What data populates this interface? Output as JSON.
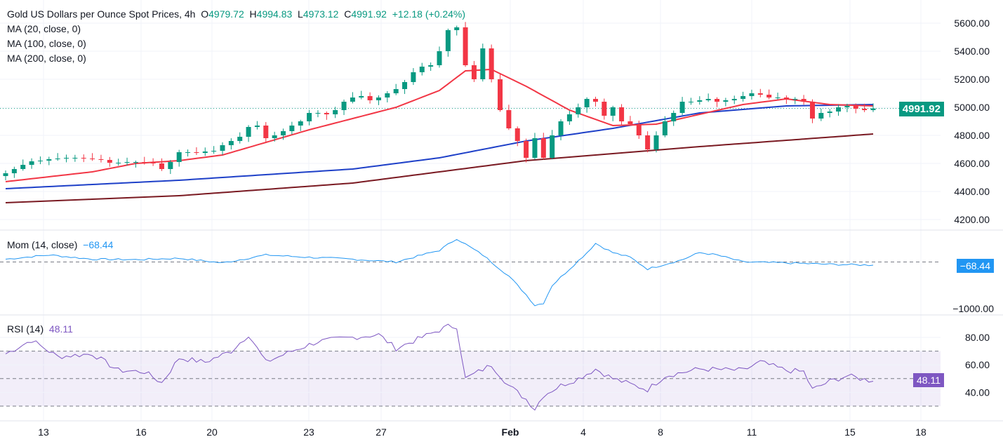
{
  "header": {
    "title": "Gold US Dollars per Ounce Spot Prices, 4h",
    "o_label": "O",
    "o": "4979.72",
    "h_label": "H",
    "h": "4994.83",
    "l_label": "L",
    "l": "4973.12",
    "c_label": "C",
    "c": "4991.92",
    "change": "+12.18 (+0.24%)"
  },
  "indicators": {
    "ma20": "MA (20, close, 0)",
    "ma100": "MA (100, close, 0)",
    "ma200": "MA (200, close, 0)",
    "mom_label": "Mom (14, close)",
    "mom_value": "−68.44",
    "rsi_label": "RSI (14)",
    "rsi_value": "48.11"
  },
  "colors": {
    "up": "#089981",
    "down": "#f23645",
    "ma20": "#f23645",
    "ma100": "#1e40c8",
    "ma200": "#7a1a22",
    "mom": "#2196f3",
    "rsi": "#7e57c2",
    "last_price": "#089981"
  },
  "chart_data": [
    {
      "type": "candlestick",
      "title": "Gold US Dollars per Ounce Spot Prices, 4h",
      "ylim": [
        4200,
        5600
      ],
      "yticks": [
        "5600.00",
        "5400.00",
        "5200.00",
        "5000.00",
        "4800.00",
        "4600.00",
        "4400.00",
        "4200.00"
      ],
      "last_price": "4991.92",
      "closes": [
        4530,
        4560,
        4590,
        4615,
        4620,
        4630,
        4635,
        4640,
        4640,
        4635,
        4630,
        4625,
        4605,
        4605,
        4610,
        4610,
        4605,
        4600,
        4560,
        4610,
        4680,
        4680,
        4675,
        4685,
        4690,
        4730,
        4760,
        4790,
        4860,
        4870,
        4780,
        4800,
        4830,
        4870,
        4900,
        4960,
        4960,
        4950,
        4980,
        5040,
        5070,
        5080,
        5050,
        5070,
        5100,
        5130,
        5180,
        5250,
        5290,
        5300,
        5400,
        5550,
        5570,
        5300,
        5200,
        5420,
        5200,
        4980,
        4850,
        4760,
        4640,
        4780,
        4640,
        4800,
        4900,
        4950,
        5000,
        5060,
        5040,
        4940,
        5000,
        4900,
        4880,
        4800,
        4700,
        4800,
        4900,
        4960,
        5040,
        5040,
        5050,
        5060,
        5040,
        5050,
        5060,
        5080,
        5100,
        5090,
        5070,
        5070,
        5060,
        5060,
        5040,
        4920,
        4960,
        4970,
        5000,
        5010,
        4990,
        4980,
        4991.92
      ],
      "series": [
        {
          "name": "MA (20, close, 0)",
          "points": [
            [
              0,
              4470
            ],
            [
              10,
              4540
            ],
            [
              15,
              4600
            ],
            [
              20,
              4620
            ],
            [
              25,
              4660
            ],
            [
              30,
              4750
            ],
            [
              35,
              4840
            ],
            [
              40,
              4920
            ],
            [
              45,
              5000
            ],
            [
              50,
              5120
            ],
            [
              53,
              5260
            ],
            [
              56,
              5270
            ],
            [
              60,
              5150
            ],
            [
              65,
              4980
            ],
            [
              70,
              4870
            ],
            [
              75,
              4880
            ],
            [
              80,
              4950
            ],
            [
              85,
              5020
            ],
            [
              90,
              5060
            ],
            [
              95,
              5020
            ],
            [
              100,
              5010
            ]
          ]
        },
        {
          "name": "MA (100, close, 0)",
          "points": [
            [
              0,
              4420
            ],
            [
              20,
              4480
            ],
            [
              40,
              4560
            ],
            [
              50,
              4640
            ],
            [
              60,
              4760
            ],
            [
              70,
              4850
            ],
            [
              80,
              4960
            ],
            [
              90,
              5010
            ],
            [
              100,
              5020
            ]
          ]
        },
        {
          "name": "MA (200, close, 0)",
          "points": [
            [
              0,
              4320
            ],
            [
              20,
              4370
            ],
            [
              40,
              4460
            ],
            [
              60,
              4620
            ],
            [
              80,
              4720
            ],
            [
              100,
              4810
            ]
          ]
        }
      ]
    },
    {
      "type": "line",
      "title": "Mom (14, close)",
      "yticks": [
        "−1000.00"
      ],
      "reference": 0,
      "points": [
        [
          0,
          60
        ],
        [
          5,
          150
        ],
        [
          10,
          60
        ],
        [
          15,
          50
        ],
        [
          20,
          80
        ],
        [
          25,
          -20
        ],
        [
          30,
          150
        ],
        [
          35,
          100
        ],
        [
          40,
          60
        ],
        [
          45,
          0
        ],
        [
          50,
          250
        ],
        [
          52,
          500
        ],
        [
          55,
          150
        ],
        [
          58,
          -300
        ],
        [
          60,
          -700
        ],
        [
          61,
          -930
        ],
        [
          62,
          -880
        ],
        [
          63,
          -500
        ],
        [
          65,
          -150
        ],
        [
          67,
          200
        ],
        [
          68,
          400
        ],
        [
          70,
          200
        ],
        [
          72,
          100
        ],
        [
          74,
          -150
        ],
        [
          76,
          -50
        ],
        [
          78,
          50
        ],
        [
          80,
          200
        ],
        [
          82,
          150
        ],
        [
          85,
          0
        ],
        [
          90,
          -20
        ],
        [
          95,
          -50
        ],
        [
          100,
          -68.44
        ]
      ]
    },
    {
      "type": "line",
      "title": "RSI (14)",
      "yticks": [
        "80.00",
        "60.00",
        "40.00"
      ],
      "bands": [
        30,
        50,
        70
      ],
      "points": [
        [
          0,
          68
        ],
        [
          3,
          78
        ],
        [
          6,
          66
        ],
        [
          10,
          68
        ],
        [
          13,
          56
        ],
        [
          16,
          55
        ],
        [
          18,
          47
        ],
        [
          20,
          65
        ],
        [
          23,
          62
        ],
        [
          26,
          70
        ],
        [
          28,
          82
        ],
        [
          30,
          62
        ],
        [
          33,
          70
        ],
        [
          36,
          77
        ],
        [
          40,
          80
        ],
        [
          43,
          82
        ],
        [
          45,
          72
        ],
        [
          48,
          80
        ],
        [
          51,
          88
        ],
        [
          52,
          88
        ],
        [
          53,
          50
        ],
        [
          56,
          60
        ],
        [
          58,
          45
        ],
        [
          60,
          35
        ],
        [
          61,
          28
        ],
        [
          62,
          38
        ],
        [
          64,
          45
        ],
        [
          66,
          50
        ],
        [
          68,
          57
        ],
        [
          70,
          50
        ],
        [
          74,
          42
        ],
        [
          76,
          52
        ],
        [
          80,
          57
        ],
        [
          85,
          56
        ],
        [
          87,
          62
        ],
        [
          90,
          56
        ],
        [
          92,
          55
        ],
        [
          93,
          42
        ],
        [
          95,
          48
        ],
        [
          97,
          52
        ],
        [
          100,
          48.11
        ]
      ]
    }
  ],
  "xaxis": {
    "labels": [
      "13",
      "16",
      "20",
      "23",
      "27",
      "Feb",
      "4",
      "8",
      "11",
      "15",
      "18"
    ]
  }
}
